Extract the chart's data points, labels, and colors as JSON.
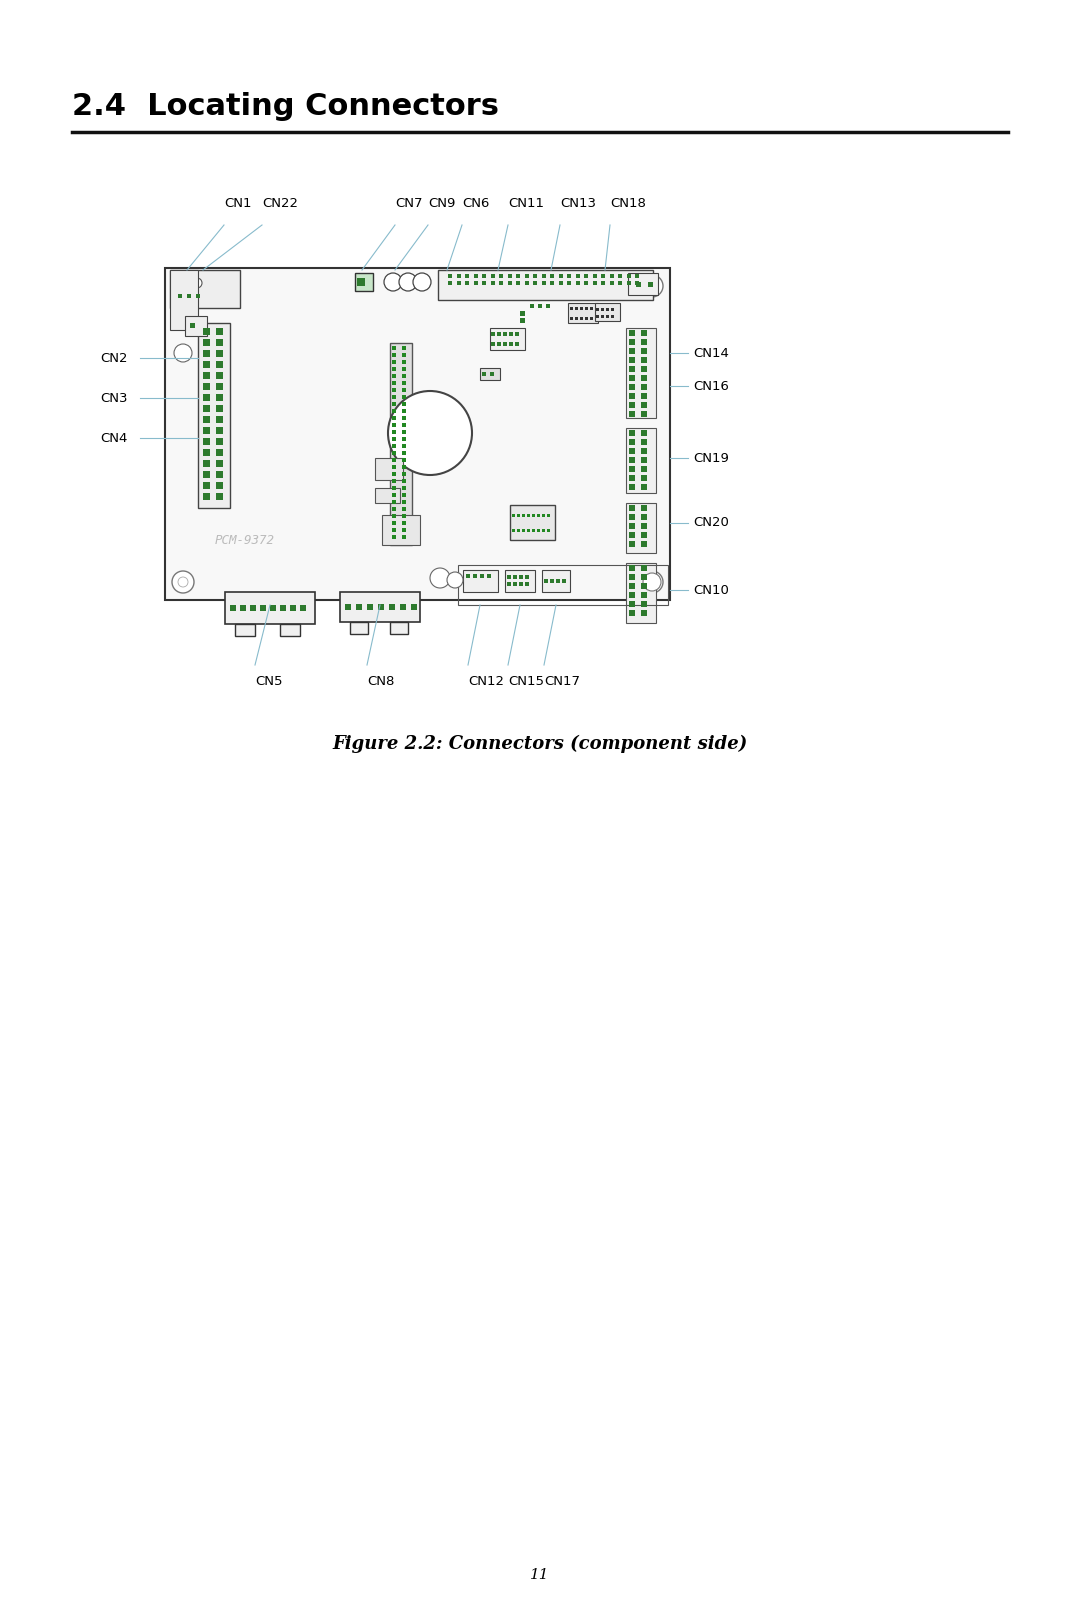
{
  "title": "2.4  Locating Connectors",
  "caption": "Figure 2.2: Connectors (component side)",
  "page_number": "11",
  "bg_color": "#ffffff",
  "text_color": "#000000",
  "green_color": "#2d7a2d",
  "dark_green": "#1a5c1a",
  "board_bg": "#f5f5f5",
  "line_color": "#888888",
  "leader_color": "#88bbcc",
  "pcm_text": "PCM-9372"
}
